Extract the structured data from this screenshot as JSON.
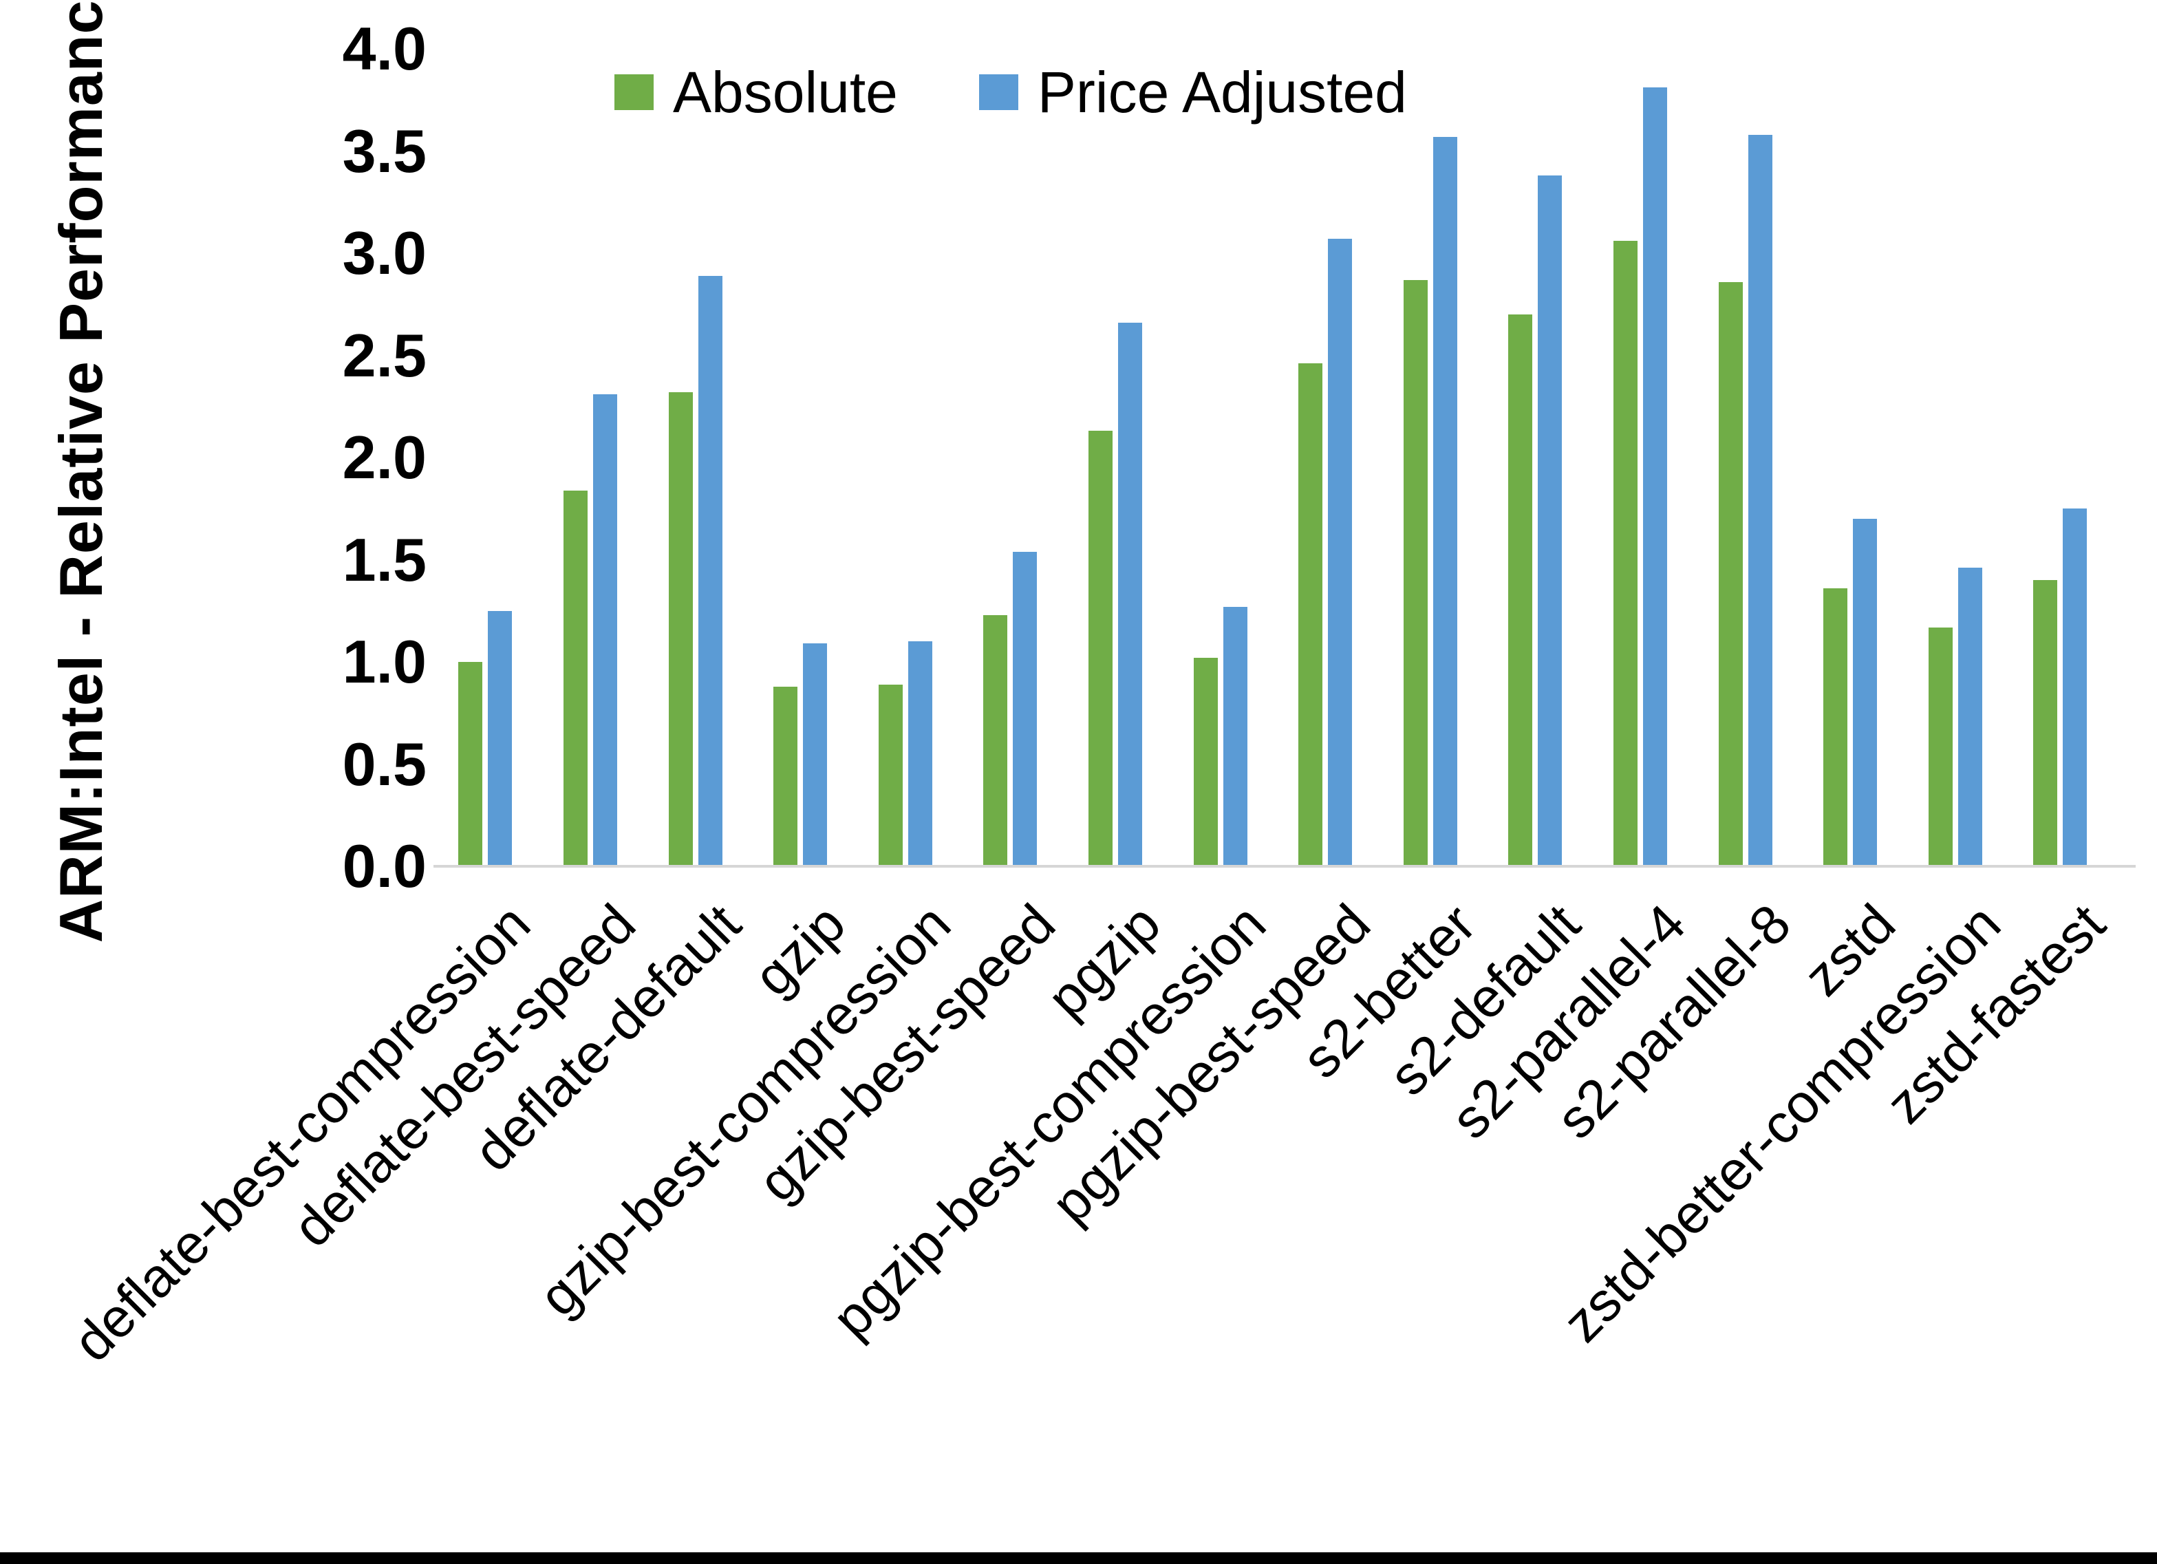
{
  "chart_data": {
    "type": "bar",
    "title": "",
    "xlabel": "",
    "ylabel": "ARM:Intel - Relative Performance",
    "ylim": [
      0.0,
      4.0
    ],
    "y_tick_labels": [
      "4.0",
      "3.5",
      "3.0",
      "2.5",
      "2.0",
      "1.5",
      "1.0",
      "0.5",
      "0.0"
    ],
    "grid": false,
    "legend_position": "top-center",
    "categories": [
      "deflate-best-compression",
      "deflate-best-speed",
      "deflate-default",
      "gzip",
      "gzip-best-compression",
      "gzip-best-speed",
      "pgzip",
      "pgzip-best-compression",
      "pgzip-best-speed",
      "s2-better",
      "s2-default",
      "s2-parallel-4",
      "s2-parallel-8",
      "zstd",
      "zstd-better-compression",
      "zstd-fastest"
    ],
    "series": [
      {
        "name": "Absolute",
        "color": "#70AD47",
        "values": [
          1.0,
          1.84,
          2.32,
          0.88,
          0.89,
          1.23,
          2.13,
          1.02,
          2.46,
          2.87,
          2.7,
          3.06,
          2.86,
          1.36,
          1.17,
          1.4
        ]
      },
      {
        "name": "Price Adjusted",
        "color": "#5B9BD5",
        "values": [
          1.25,
          2.31,
          2.89,
          1.09,
          1.1,
          1.54,
          2.66,
          1.27,
          3.07,
          3.57,
          3.38,
          3.81,
          3.58,
          1.7,
          1.46,
          1.75
        ]
      }
    ]
  },
  "colors": {
    "background": "#FFFFFF",
    "axis_line": "#D6D6D6",
    "text": "#000000",
    "bottom_strip": "#000000"
  }
}
